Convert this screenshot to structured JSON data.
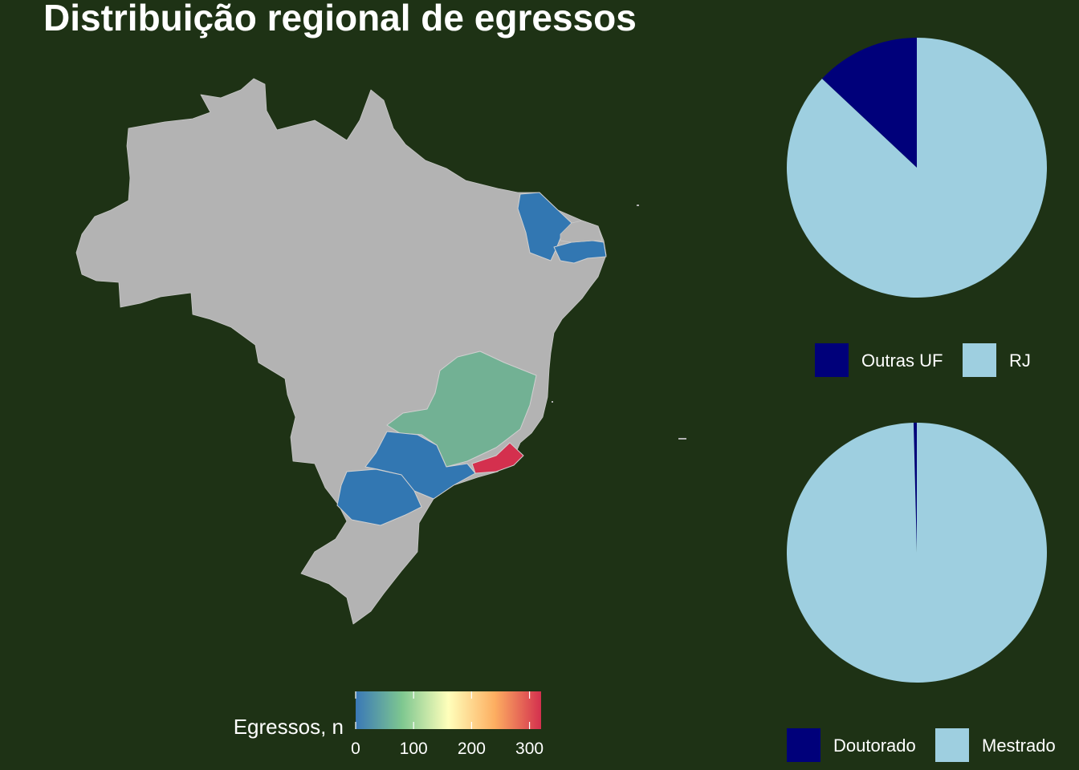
{
  "title": "Distribuição regional de egressos",
  "colors": {
    "background": "#1e3215",
    "land": "#b3b3b3",
    "pie_dark": "#00007a",
    "pie_light": "#9ecfe0"
  },
  "chart_data": [
    {
      "type": "choropleth",
      "title": "Distribuição regional de egressos",
      "region": "Brasil",
      "legend": {
        "title": "Egressos, n",
        "ticks": [
          0,
          100,
          200,
          300
        ],
        "tick_labels": [
          "0",
          "100",
          "200",
          "300"
        ],
        "range": [
          0,
          320
        ],
        "palette": [
          "#3a78b7",
          "#7ec790",
          "#ffffbb",
          "#fdae61",
          "#d4304e"
        ]
      },
      "regions": [
        {
          "state": "RJ",
          "value": 320,
          "color": "#d4304e"
        },
        {
          "state": "MG",
          "value": 45,
          "color": "#72b194"
        },
        {
          "state": "SP",
          "value": 5,
          "color": "#3277b2"
        },
        {
          "state": "PR",
          "value": 5,
          "color": "#3277b2"
        },
        {
          "state": "CE",
          "value": 5,
          "color": "#3277b2"
        },
        {
          "state": "PB",
          "value": 5,
          "color": "#3277b2"
        }
      ]
    },
    {
      "type": "pie",
      "slices": [
        {
          "label": "Outras UF",
          "value": 13,
          "color": "#00007a"
        },
        {
          "label": "RJ",
          "value": 87,
          "color": "#9ecfe0"
        }
      ],
      "legend": [
        "Outras UF",
        "RJ"
      ]
    },
    {
      "type": "pie",
      "slices": [
        {
          "label": "Doutorado",
          "value": 0.4,
          "color": "#00007a"
        },
        {
          "label": "Mestrado",
          "value": 99.6,
          "color": "#9ecfe0"
        }
      ],
      "legend": [
        "Doutorado",
        "Mestrado"
      ]
    }
  ]
}
